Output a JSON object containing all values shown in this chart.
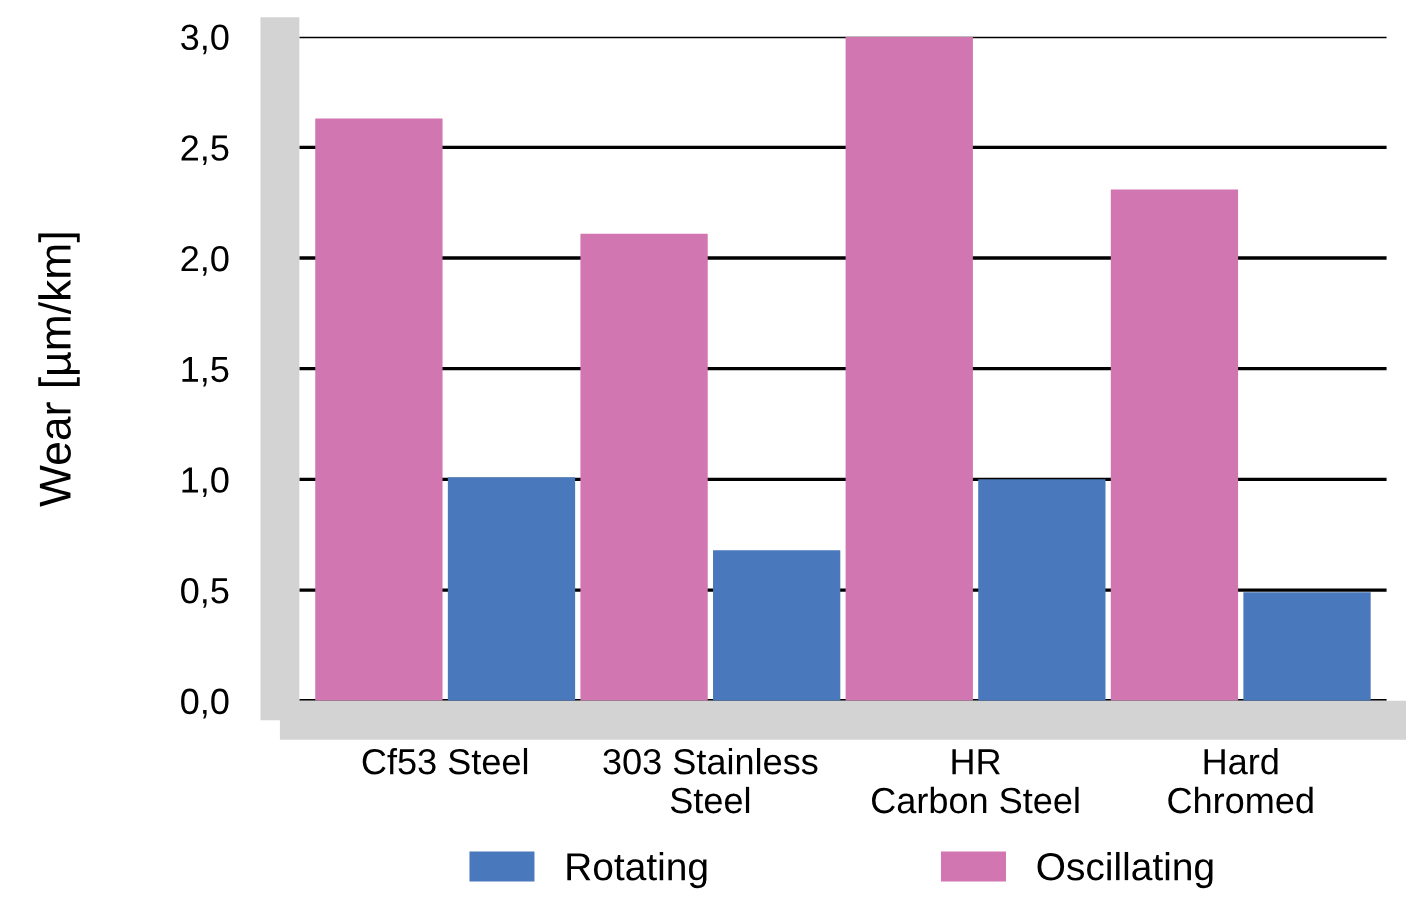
{
  "chart_data": {
    "type": "bar",
    "ylabel": "Wear [µm/km]",
    "categories": [
      "Cf53 Steel",
      "303 Stainless\nSteel",
      "HR\nCarbon Steel",
      "Hard\nChromed"
    ],
    "series": [
      {
        "name": "Rotating",
        "color": "#4a78bd",
        "values": [
          1.01,
          0.68,
          1.0,
          0.49
        ]
      },
      {
        "name": "Oscillating",
        "color": "#d176b1",
        "values": [
          2.63,
          2.11,
          3.0,
          2.31
        ]
      }
    ],
    "ylim": [
      0,
      3.0
    ],
    "yticks": [
      {
        "value": 0,
        "label": "0,0"
      },
      {
        "value": 0.5,
        "label": "0,5"
      },
      {
        "value": 1.0,
        "label": "1,0"
      },
      {
        "value": 1.5,
        "label": "1,5"
      },
      {
        "value": 2.0,
        "label": "2,0"
      },
      {
        "value": 2.5,
        "label": "2,5"
      },
      {
        "value": 3.0,
        "label": "3,0"
      }
    ],
    "grid": "y",
    "legend": "bottom"
  }
}
